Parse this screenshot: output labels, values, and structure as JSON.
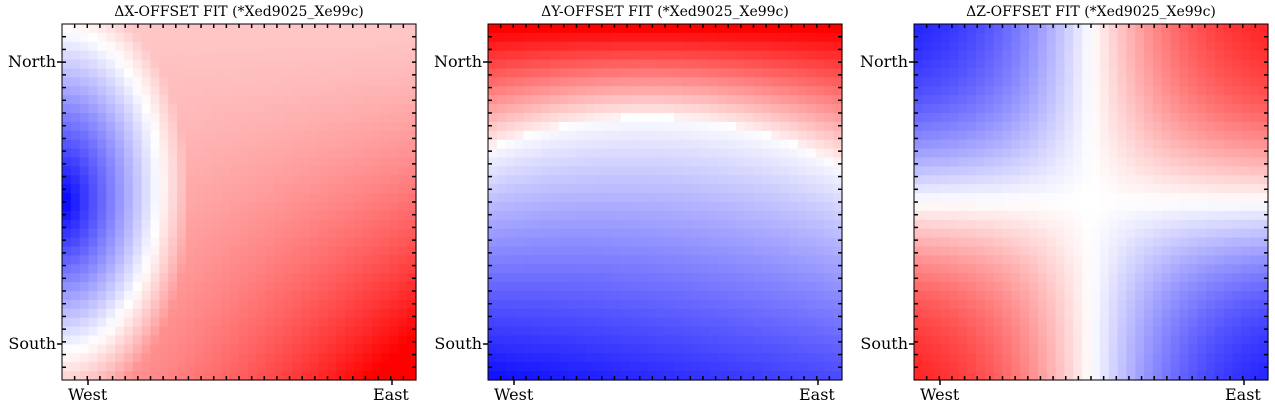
{
  "chart_data": [
    {
      "type": "heatmap",
      "title": "ΔX-OFFSET FIT (*Xed9025_Xe99c)",
      "x_tick_labels": [
        "West",
        "East"
      ],
      "y_tick_labels": [
        "North",
        "South"
      ],
      "colormap": "bwr",
      "colors": {
        "low": "#0000ff",
        "mid": "#ffffff",
        "high": "#ff0000"
      },
      "pattern": "blue lobe at west-center, red increasing toward southeast corner",
      "grid": false
    },
    {
      "type": "heatmap",
      "title": "ΔY-OFFSET FIT (*Xed9025_Xe99c)",
      "x_tick_labels": [
        "West",
        "East"
      ],
      "y_tick_labels": [
        "North",
        "South"
      ],
      "colormap": "bwr",
      "colors": {
        "low": "#0000ff",
        "mid": "#ffffff",
        "high": "#ff0000"
      },
      "pattern": "red band along north edge, blue increasing toward southwest corner",
      "grid": false
    },
    {
      "type": "heatmap",
      "title": "ΔZ-OFFSET FIT (*Xed9025_Xe99c)",
      "x_tick_labels": [
        "West",
        "East"
      ],
      "y_tick_labels": [
        "North",
        "South"
      ],
      "colormap": "bwr",
      "colors": {
        "low": "#0000ff",
        "mid": "#ffffff",
        "high": "#ff0000"
      },
      "pattern": "saddle: blue at northwest and southeast corners, red at northeast and southwest corners",
      "grid": false
    }
  ]
}
